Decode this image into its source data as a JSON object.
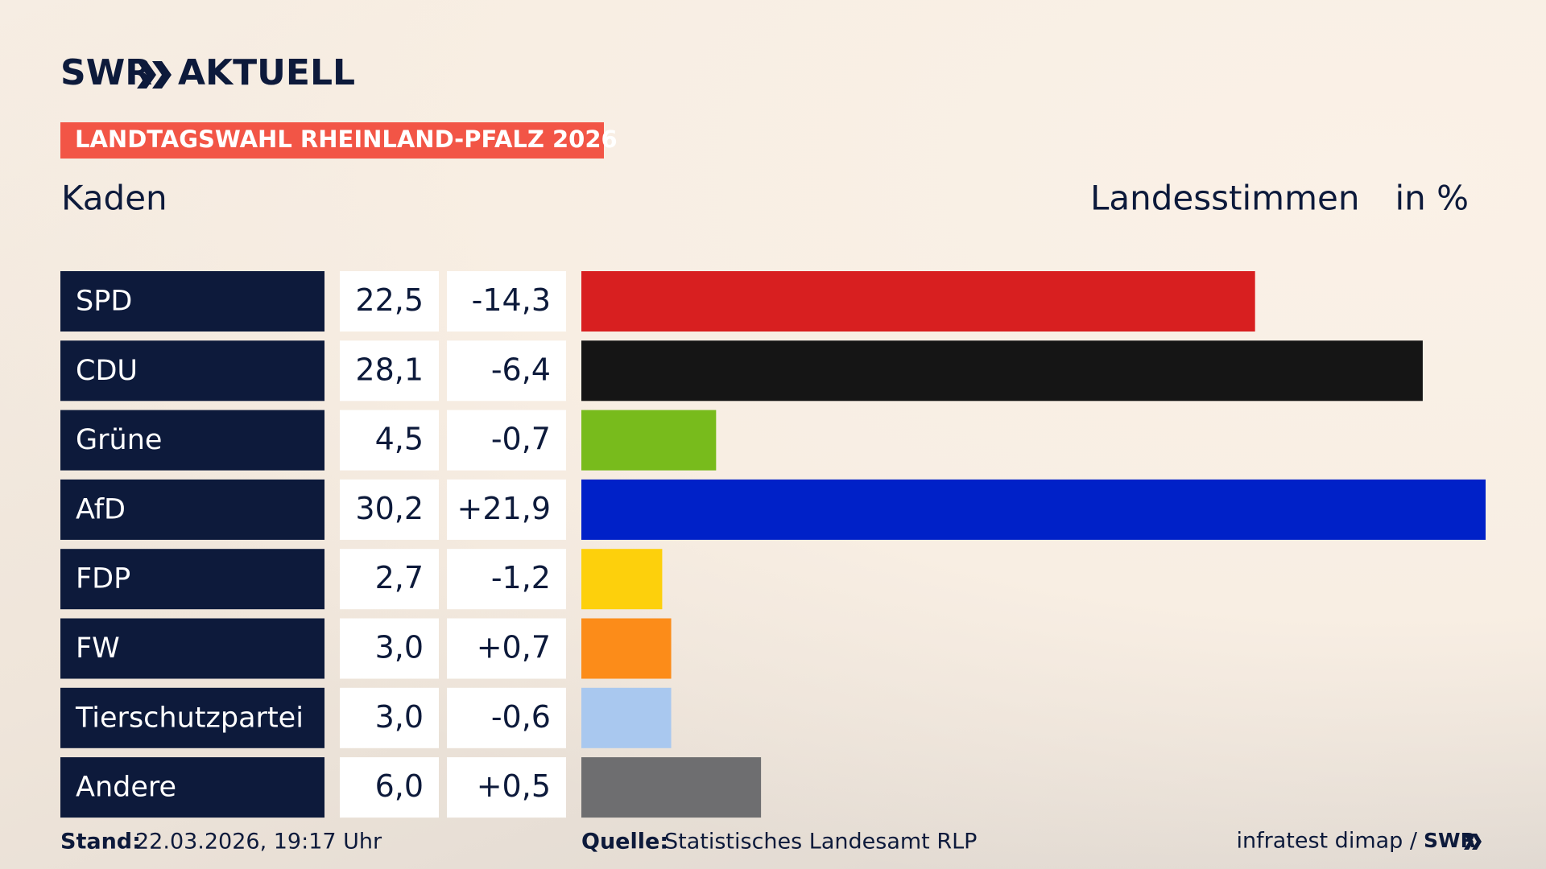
{
  "chart_data": {
    "type": "hbar",
    "brand": "SWR",
    "brand_suffix": "AKTUELL",
    "title": "LANDTAGSWAHL RHEINLAND-PFALZ 2026",
    "subtitle": "Kaden",
    "value_axis_label": "Landesstimmen",
    "unit_label": "in %",
    "categories": [
      "SPD",
      "CDU",
      "Grüne",
      "AfD",
      "FDP",
      "FW",
      "Tierschutzpartei",
      "Andere"
    ],
    "values": [
      22.5,
      28.1,
      4.5,
      30.2,
      2.7,
      3.0,
      3.0,
      6.0
    ],
    "value_labels": [
      "22,5",
      "28,1",
      "4,5",
      "30,2",
      "2,7",
      "3,0",
      "3,0",
      "6,0"
    ],
    "changes": [
      "-14,3",
      "-6,4",
      "-0,7",
      "+21,9",
      "-1,2",
      "+0,7",
      "-0,6",
      "+0,5"
    ],
    "colors": [
      "#d81f20",
      "#151515",
      "#78bb1c",
      "#0021c8",
      "#fdd00c",
      "#fc8c19",
      "#a9c8ef",
      "#6e6e70"
    ],
    "footer": {
      "stand_label": "Stand:",
      "stand": "22.03.2026, 19:17 Uhr",
      "source_label": "Quelle:",
      "source": "Statistisches Landesamt RLP",
      "credit": "infratest dimap /",
      "credit_brand": "SWR"
    }
  }
}
